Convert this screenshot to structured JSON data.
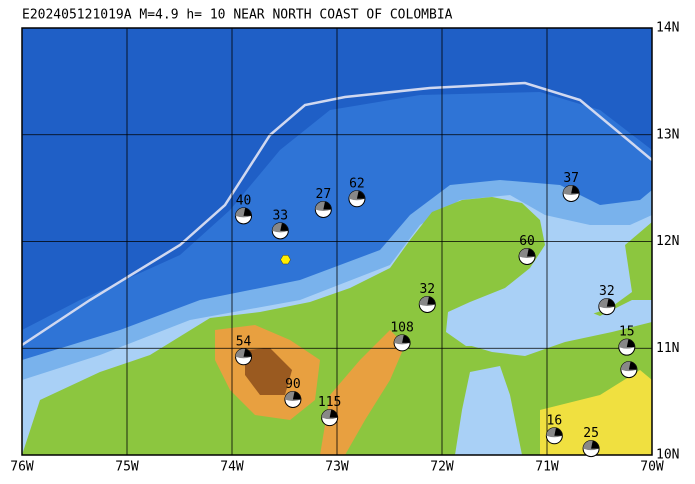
{
  "title": "E202405121019A M=4.9 h= 10 NEAR NORTH COAST OF COLOMBIA",
  "xlim": [
    -76,
    -70
  ],
  "ylim": [
    10,
    14
  ],
  "xticks": [
    {
      "value": -76,
      "label": "76W"
    },
    {
      "value": -75,
      "label": "75W"
    },
    {
      "value": -74,
      "label": "74W"
    },
    {
      "value": -73,
      "label": "73W"
    },
    {
      "value": -72,
      "label": "72W"
    },
    {
      "value": -71,
      "label": "71W"
    },
    {
      "value": -70,
      "label": "70W"
    }
  ],
  "yticks": [
    {
      "value": 10,
      "label": "10N"
    },
    {
      "value": 11,
      "label": "11N"
    },
    {
      "value": 12,
      "label": "12N"
    },
    {
      "value": 13,
      "label": "13N"
    },
    {
      "value": 14,
      "label": "14N"
    }
  ],
  "epicenter": {
    "lon": -73.49,
    "lat": 11.83
  },
  "events": [
    {
      "lon": -73.89,
      "lat": 12.24,
      "depth": 40
    },
    {
      "lon": -73.54,
      "lat": 12.1,
      "depth": 33
    },
    {
      "lon": -73.13,
      "lat": 12.3,
      "depth": 27
    },
    {
      "lon": -72.81,
      "lat": 12.4,
      "depth": 62
    },
    {
      "lon": -70.77,
      "lat": 12.45,
      "depth": 37
    },
    {
      "lon": -71.19,
      "lat": 11.86,
      "depth": 60
    },
    {
      "lon": -72.14,
      "lat": 11.41,
      "depth": 32
    },
    {
      "lon": -70.43,
      "lat": 11.39,
      "depth": 32
    },
    {
      "lon": -72.38,
      "lat": 11.05,
      "depth": 108
    },
    {
      "lon": -73.89,
      "lat": 10.92,
      "depth": 54
    },
    {
      "lon": -70.24,
      "lat": 11.01,
      "depth": 15
    },
    {
      "lon": -70.22,
      "lat": 10.8,
      "depth": null
    },
    {
      "lon": -73.42,
      "lat": 10.52,
      "depth": 90
    },
    {
      "lon": -73.07,
      "lat": 10.35,
      "depth": 115
    },
    {
      "lon": -70.93,
      "lat": 10.18,
      "depth": 16
    },
    {
      "lon": -70.58,
      "lat": 10.06,
      "depth": 25
    }
  ]
}
